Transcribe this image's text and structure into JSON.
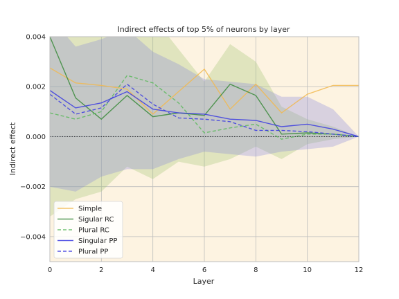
{
  "chart_data": {
    "type": "line",
    "title": "Indirect effects of top 5% of neurons by layer",
    "xlabel": "Layer",
    "ylabel": "Indirect effect",
    "xlim": [
      0,
      12
    ],
    "ylim": [
      -0.005,
      0.004
    ],
    "x_ticks": [
      0,
      2,
      4,
      6,
      8,
      10,
      12
    ],
    "x_tick_labels": [
      "0",
      "2",
      "4",
      "6",
      "8",
      "10",
      "12"
    ],
    "y_ticks": [
      -0.004,
      -0.002,
      0.0,
      0.002,
      0.004
    ],
    "y_tick_labels": [
      "−0.004",
      "−0.002",
      "0.000",
      "0.002",
      "0.004"
    ],
    "grid": true,
    "legend_position": "lower-left",
    "background_color": "#fdf3e1",
    "zero_line": true,
    "x": [
      0,
      1,
      2,
      3,
      4,
      5,
      6,
      7,
      8,
      9,
      10,
      11,
      12
    ],
    "series": [
      {
        "name": "Simple",
        "color": "#f2b94f",
        "style": "solid",
        "values": [
          0.00275,
          0.00215,
          0.00205,
          0.0019,
          0.0009,
          0.0018,
          0.0027,
          0.0011,
          0.0021,
          0.00095,
          0.0017,
          0.00205,
          0.00205
        ]
      },
      {
        "name": "Sigular RC",
        "color": "#3a8a3a",
        "style": "solid",
        "values": [
          0.004,
          0.00155,
          0.0007,
          0.00165,
          0.0008,
          0.00095,
          0.00085,
          0.0021,
          0.00165,
          0.0001,
          0.00015,
          0.0001,
          0.0
        ],
        "band_upper": [
          0.0085,
          0.0055,
          0.005,
          0.006,
          0.0048,
          0.0035,
          0.0022,
          0.0037,
          0.003,
          0.0012,
          0.0007,
          0.0004,
          0.0
        ],
        "band_lower": [
          -0.0032,
          -0.0025,
          -0.0022,
          -0.0012,
          -0.0017,
          -0.001,
          -0.0012,
          -0.0009,
          -0.0004,
          -0.0009,
          -0.0003,
          -0.0001,
          0.0
        ]
      },
      {
        "name": "Plural RC",
        "color": "#5cb85c",
        "style": "dashed",
        "values": [
          0.00095,
          0.0007,
          0.001,
          0.00245,
          0.00215,
          0.00135,
          0.00015,
          0.00035,
          0.0005,
          -0.0001,
          0.0001,
          0.0001,
          0.0
        ]
      },
      {
        "name": "Singular PP",
        "color": "#3b3be0",
        "style": "solid",
        "values": [
          0.00185,
          0.00115,
          0.00135,
          0.0018,
          0.0011,
          0.00095,
          0.0009,
          0.0007,
          0.00065,
          0.0004,
          0.0005,
          0.0003,
          0.0
        ],
        "band_upper": [
          0.0048,
          0.0036,
          0.0039,
          0.0043,
          0.0034,
          0.0029,
          0.0023,
          0.0022,
          0.0021,
          0.0016,
          0.0016,
          0.0011,
          0.0
        ],
        "band_lower": [
          -0.002,
          -0.0022,
          -0.0016,
          -0.0013,
          -0.0013,
          -0.0009,
          -0.0006,
          -0.0007,
          -0.0008,
          -0.0006,
          -0.0005,
          -0.0004,
          0.0
        ]
      },
      {
        "name": "Plural PP",
        "color": "#3b3be0",
        "style": "dashed",
        "values": [
          0.0017,
          0.0009,
          0.00115,
          0.0021,
          0.0013,
          0.00075,
          0.0007,
          0.0006,
          0.00025,
          0.00025,
          0.0002,
          0.0001,
          0.0
        ]
      }
    ]
  }
}
